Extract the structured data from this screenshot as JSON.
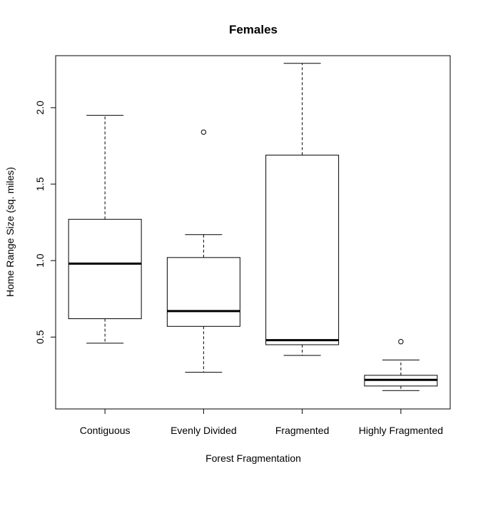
{
  "chart_data": {
    "type": "boxplot",
    "title": "Females",
    "xlabel": "Forest Fragmentation",
    "ylabel": "Home Range Size (sq. miles)",
    "ylim": [
      0.03,
      2.34
    ],
    "yticks": [
      "0.5",
      "1.0",
      "1.5",
      "2.0"
    ],
    "categories": [
      "Contiguous",
      "Evenly Divided",
      "Fragmented",
      "Highly Fragmented"
    ],
    "boxes": [
      {
        "name": "Contiguous",
        "whisker_low": 0.46,
        "q1": 0.62,
        "median": 0.98,
        "q3": 1.27,
        "whisker_high": 1.95,
        "outliers": []
      },
      {
        "name": "Evenly Divided",
        "whisker_low": 0.27,
        "q1": 0.57,
        "median": 0.67,
        "q3": 1.02,
        "whisker_high": 1.17,
        "outliers": [
          1.84
        ]
      },
      {
        "name": "Fragmented",
        "whisker_low": 0.38,
        "q1": 0.45,
        "median": 0.48,
        "q3": 1.69,
        "whisker_high": 2.29,
        "outliers": []
      },
      {
        "name": "Highly Fragmented",
        "whisker_low": 0.15,
        "q1": 0.18,
        "median": 0.22,
        "q3": 0.25,
        "whisker_high": 0.35,
        "outliers": [
          0.47
        ]
      }
    ],
    "grid": false,
    "legend": "none"
  }
}
